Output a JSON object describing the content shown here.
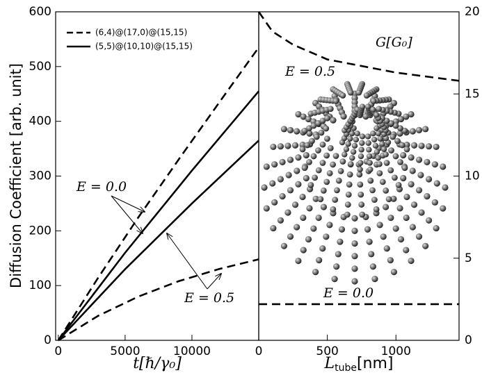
{
  "chart_data": [
    {
      "type": "line",
      "x_label": "t[ℏ/γ₀]",
      "y_label": "Diffusion Coefficient [arb. unit]",
      "xlim": [
        -200,
        15000
      ],
      "xticks": [
        0,
        5000,
        10000
      ],
      "ylim": [
        0,
        600
      ],
      "yticks": [
        0,
        100,
        200,
        300,
        400,
        500,
        600
      ],
      "series": [
        {
          "name": "(6,4)@(17,0)@(15,15)",
          "dash": true,
          "color": "#000000",
          "x": [
            0,
            3000,
            6000,
            9000,
            12000,
            15000
          ],
          "values": [
            0,
            115,
            225,
            330,
            433,
            535
          ]
        },
        {
          "name": "(5,5)@(10,10)@(15,15)",
          "dash": false,
          "color": "#000000",
          "x": [
            0,
            5000,
            10000,
            15000
          ],
          "values": [
            0,
            160,
            310,
            455
          ]
        },
        {
          "name": "(5,5)@(10,10)@(15,15)",
          "dash": false,
          "color": "#000000",
          "x": [
            0,
            5000,
            10000,
            15000
          ],
          "values": [
            0,
            130,
            250,
            365
          ]
        },
        {
          "name": "(6,4)@(17,0)@(15,15)",
          "dash": true,
          "color": "#000000",
          "x": [
            0,
            3000,
            6000,
            9000,
            12000,
            15000
          ],
          "values": [
            0,
            45,
            80,
            108,
            130,
            148
          ]
        }
      ],
      "annotations": [
        "E = 0.0",
        "E = 0.5"
      ]
    },
    {
      "type": "line",
      "x_label": "L",
      "x_label_sub": "tube",
      "x_label_unit": "[nm]",
      "xlim": [
        0,
        1460
      ],
      "xticks": [
        0,
        500,
        1000
      ],
      "y2lim": [
        0,
        20
      ],
      "y2ticks": [
        0,
        5,
        10,
        15,
        20
      ],
      "series": [
        {
          "name": "E = 0.5",
          "dash": true,
          "color": "#000000",
          "axis": "y2",
          "x": [
            0,
            100,
            250,
            500,
            1000,
            1460
          ],
          "values": [
            20,
            18.8,
            18,
            17.1,
            16.3,
            15.8
          ]
        },
        {
          "name": "E = 0.0",
          "dash": true,
          "color": "#000000",
          "axis": "y2",
          "x": [
            0,
            1460
          ],
          "values": [
            2.2,
            2.2
          ]
        }
      ],
      "annotations": [
        "G[G₀]"
      ]
    }
  ]
}
